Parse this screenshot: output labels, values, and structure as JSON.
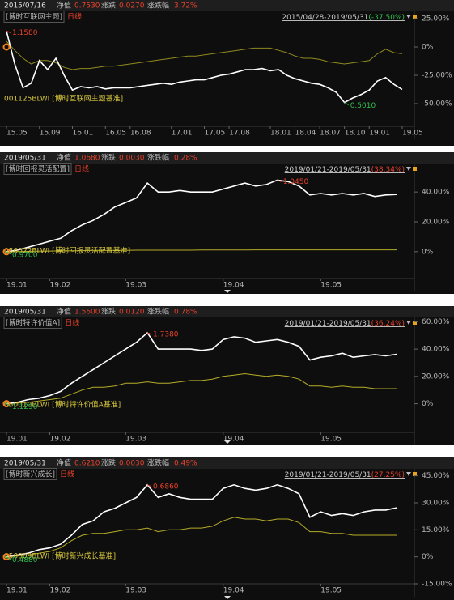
{
  "chart_data": [
    {
      "type": "line",
      "date": "2015/07/16",
      "nav_label": "净值",
      "nav": "0.7530",
      "chg_label": "涨跌",
      "chg": "0.0270",
      "pct_label": "涨跌幅",
      "pct": "3.72%",
      "fund": "[博时互联网主题]",
      "period": "日线",
      "range": "2015/04/28-2019/05/31",
      "range_change": "(-37.50%)",
      "categories": [
        "15.05",
        null,
        null,
        null,
        "15.09",
        null,
        null,
        null,
        "16.01",
        null,
        null,
        null,
        "16.05",
        null,
        null,
        "16.08",
        null,
        null,
        null,
        null,
        "17.01",
        null,
        null,
        null,
        "17.05",
        null,
        null,
        "17.08",
        null,
        null,
        null,
        null,
        "18.01",
        null,
        null,
        "18.04",
        null,
        null,
        "18.07",
        null,
        null,
        "18.10",
        null,
        null,
        "19.01",
        null,
        null,
        null,
        "19.05"
      ],
      "series": [
        {
          "name": "[博时互联网主题]",
          "color": "#ffffff",
          "values": [
            14,
            -15,
            -36,
            -32,
            -12,
            -20,
            -10,
            -25,
            -38,
            -35,
            -36,
            -35,
            -37,
            -36,
            -36,
            -36,
            -35,
            -34,
            -33,
            -32,
            -33,
            -31,
            -30,
            -29,
            -29,
            -27,
            -25,
            -24,
            -22,
            -20,
            -20,
            -19,
            -21,
            -20,
            -25,
            -28,
            -30,
            -32,
            -33,
            -36,
            -40,
            -49,
            -45,
            -42,
            -38,
            -30,
            -27,
            -33,
            -37.5
          ]
        },
        {
          "name": "001125BLWI [博时互联网主题基准]",
          "color": "#8f8a1f",
          "values": [
            5,
            -3,
            -10,
            -15,
            -12,
            -12,
            -14,
            -18,
            -20,
            -19,
            -19,
            -18,
            -17,
            -17,
            -16,
            -15,
            -14,
            -13,
            -12,
            -11,
            -10,
            -9,
            -8,
            -8,
            -7,
            -6,
            -5,
            -4,
            -3,
            -2,
            -1,
            -1,
            -1,
            -3,
            -5,
            -8,
            -10,
            -10,
            -11,
            -13,
            -14,
            -15,
            -14,
            -13,
            -12,
            -6,
            -2,
            -5,
            -6
          ]
        }
      ],
      "ylim": [
        -70,
        30
      ],
      "yticks": [
        {
          "value": 25,
          "label": "25.00%"
        },
        {
          "value": 0,
          "label": "0%"
        },
        {
          "value": -25,
          "label": "-25.00%"
        },
        {
          "value": -50,
          "label": "-50.00%"
        }
      ],
      "max_label": "1.1580",
      "min_label": "0.5010"
    },
    {
      "type": "line",
      "date": "2019/05/31",
      "nav_label": "净值",
      "nav": "1.0680",
      "chg_label": "涨跌",
      "chg": "0.0030",
      "pct_label": "涨跌幅",
      "pct": "0.28%",
      "fund": "[博时回报灵活配置]",
      "period": "日线",
      "range": "2019/01/21-2019/05/31",
      "range_change": "(38.34%)",
      "categories": [
        "19.01",
        null,
        null,
        null,
        "19.02",
        null,
        null,
        null,
        null,
        null,
        null,
        "19.03",
        null,
        null,
        null,
        null,
        null,
        null,
        null,
        null,
        "19.04",
        null,
        null,
        null,
        null,
        null,
        null,
        null,
        null,
        "19.05",
        null,
        null,
        null,
        null,
        null,
        null,
        null
      ],
      "series": [
        {
          "name": "[博时回报灵活配置]",
          "color": "#ffffff",
          "values": [
            0,
            1,
            3,
            5,
            7,
            9,
            14,
            18,
            21,
            25,
            30,
            33,
            36,
            46,
            40,
            40,
            41,
            40,
            40,
            40,
            42,
            44,
            46,
            44,
            45,
            48,
            47,
            44,
            38,
            39,
            38,
            39,
            38,
            39,
            37,
            38,
            38.34
          ]
        },
        {
          "name": "050022BLWI [博时回报灵活配置基准]",
          "color": "#b5ac28",
          "values": [
            0,
            0.1,
            0.2,
            0.3,
            0.4,
            0.5,
            0.6,
            0.7,
            0.8,
            0.8,
            0.9,
            0.9,
            1,
            1,
            1,
            1,
            1,
            1,
            1.1,
            1.1,
            1.1,
            1.1,
            1.1,
            1.2,
            1.2,
            1.2,
            1.2,
            1.2,
            1.2,
            1.2,
            1.2,
            1.2,
            1.2,
            1.2,
            1.2,
            1.2,
            1.2
          ]
        }
      ],
      "ylim": [
        -18,
        58
      ],
      "yticks": [
        {
          "value": 40,
          "label": "40.00%"
        },
        {
          "value": 20,
          "label": "20.00%"
        },
        {
          "value": 0,
          "label": "0%"
        }
      ],
      "max_label": "1.0450",
      "min_label": "0.9700"
    },
    {
      "type": "line",
      "date": "2019/05/31",
      "nav_label": "净值",
      "nav": "1.5600",
      "chg_label": "涨跌",
      "chg": "0.0120",
      "pct_label": "涨跌幅",
      "pct": "0.78%",
      "fund": "[博时特许价值A]",
      "period": "日线",
      "range": "2019/01/21-2019/05/31",
      "range_change": "(36.24%)",
      "categories": [
        "19.01",
        null,
        null,
        null,
        "19.02",
        null,
        null,
        null,
        null,
        null,
        null,
        "19.03",
        null,
        null,
        null,
        null,
        null,
        null,
        null,
        null,
        "19.04",
        null,
        null,
        null,
        null,
        null,
        null,
        null,
        null,
        "19.05",
        null,
        null,
        null,
        null,
        null,
        null,
        null
      ],
      "series": [
        {
          "name": "[博时特许价值A]",
          "color": "#ffffff",
          "values": [
            0,
            1,
            3,
            4,
            6,
            9,
            15,
            20,
            25,
            30,
            35,
            40,
            45,
            52,
            40,
            40,
            40,
            40,
            39,
            40,
            47,
            49,
            48,
            45,
            46,
            47,
            45,
            42,
            32,
            34,
            35,
            37,
            34,
            35,
            36,
            35,
            36.24
          ]
        },
        {
          "name": "050010BLWI [博时特许价值A基准]",
          "color": "#b5ac28",
          "values": [
            0,
            0.5,
            1,
            2,
            3,
            4,
            7,
            10,
            12,
            12,
            13,
            15,
            15,
            16,
            15,
            15,
            16,
            17,
            17,
            18,
            20,
            21,
            22,
            21,
            20,
            21,
            20,
            18,
            13,
            13,
            12,
            13,
            12,
            12,
            11,
            11,
            11
          ]
        }
      ],
      "ylim": [
        -21,
        62
      ],
      "yticks": [
        {
          "value": 60,
          "label": "60.00%"
        },
        {
          "value": 40,
          "label": "40.00%"
        },
        {
          "value": 20,
          "label": "20.00%"
        },
        {
          "value": 0,
          "label": "0%"
        }
      ],
      "max_label": "1.7380",
      "min_label": "1.1290"
    },
    {
      "type": "line",
      "date": "2019/05/31",
      "nav_label": "净值",
      "nav": "0.6210",
      "chg_label": "涨跌",
      "chg": "0.0030",
      "pct_label": "涨跌幅",
      "pct": "0.49%",
      "fund": "[博时新兴成长]",
      "period": "日线",
      "range": "2019/01/21-2019/05/31",
      "range_change": "(27.25%)",
      "categories": [
        "19.01",
        null,
        null,
        null,
        "19.02",
        null,
        null,
        null,
        null,
        null,
        null,
        "19.03",
        null,
        null,
        null,
        null,
        null,
        null,
        null,
        null,
        "19.04",
        null,
        null,
        null,
        null,
        null,
        null,
        null,
        null,
        "19.05",
        null,
        null,
        null,
        null,
        null,
        null,
        null
      ],
      "series": [
        {
          "name": "[博时新兴成长]",
          "color": "#ffffff",
          "values": [
            0,
            1,
            2,
            4,
            5,
            7,
            12,
            18,
            20,
            25,
            27,
            30,
            33,
            40,
            33,
            35,
            33,
            32,
            32,
            32,
            38,
            40,
            38,
            37,
            38,
            40,
            38,
            35,
            22,
            25,
            23,
            24,
            23,
            25,
            26,
            26,
            27.25
          ]
        },
        {
          "name": "050009BLWI [博时新兴成长基准]",
          "color": "#b5ac28",
          "values": [
            0,
            0.5,
            1,
            2,
            3,
            5,
            9,
            12,
            13,
            13,
            14,
            15,
            15,
            16,
            14,
            15,
            15,
            16,
            16,
            17,
            20,
            22,
            21,
            21,
            20,
            21,
            21,
            19,
            14,
            14,
            13,
            13,
            12,
            12,
            12,
            12,
            12
          ]
        }
      ],
      "ylim": [
        -15,
        48
      ],
      "yticks": [
        {
          "value": 45,
          "label": "45.00%"
        },
        {
          "value": 30,
          "label": "30.00%"
        },
        {
          "value": 15,
          "label": "15.00%"
        },
        {
          "value": 0,
          "label": "0%"
        },
        {
          "value": -15,
          "label": "-15.00%"
        }
      ],
      "max_label": "0.6860",
      "min_label": "0.4880"
    }
  ]
}
